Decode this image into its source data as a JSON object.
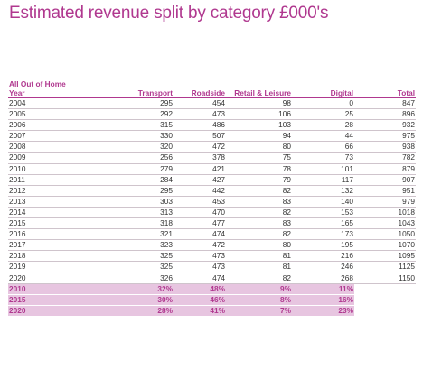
{
  "title": "Estimated revenue split by category £000's",
  "table": {
    "group_label": "All Out of Home",
    "columns": [
      "Year",
      "Transport",
      "Roadside",
      "Retail & Leisure",
      "Digital",
      "Total"
    ],
    "rows": [
      [
        "2004",
        "295",
        "454",
        "98",
        "0",
        "847"
      ],
      [
        "2005",
        "292",
        "473",
        "106",
        "25",
        "896"
      ],
      [
        "2006",
        "315",
        "486",
        "103",
        "28",
        "932"
      ],
      [
        "2007",
        "330",
        "507",
        "94",
        "44",
        "975"
      ],
      [
        "2008",
        "320",
        "472",
        "80",
        "66",
        "938"
      ],
      [
        "2009",
        "256",
        "378",
        "75",
        "73",
        "782"
      ],
      [
        "2010",
        "279",
        "421",
        "78",
        "101",
        "879"
      ],
      [
        "2011",
        "284",
        "427",
        "79",
        "117",
        "907"
      ],
      [
        "2012",
        "295",
        "442",
        "82",
        "132",
        "951"
      ],
      [
        "2013",
        "303",
        "453",
        "83",
        "140",
        "979"
      ],
      [
        "2014",
        "313",
        "470",
        "82",
        "153",
        "1018"
      ],
      [
        "2015",
        "318",
        "477",
        "83",
        "165",
        "1043"
      ],
      [
        "2016",
        "321",
        "474",
        "82",
        "173",
        "1050"
      ],
      [
        "2017",
        "323",
        "472",
        "80",
        "195",
        "1070"
      ],
      [
        "2018",
        "325",
        "473",
        "81",
        "216",
        "1095"
      ],
      [
        "2019",
        "325",
        "473",
        "81",
        "246",
        "1125"
      ],
      [
        "2020",
        "326",
        "474",
        "82",
        "268",
        "1150"
      ]
    ],
    "percent_rows": [
      [
        "2010",
        "32%",
        "48%",
        "9%",
        "11%"
      ],
      [
        "2015",
        "30%",
        "46%",
        "8%",
        "16%"
      ],
      [
        "2020",
        "28%",
        "41%",
        "7%",
        "23%"
      ]
    ]
  }
}
